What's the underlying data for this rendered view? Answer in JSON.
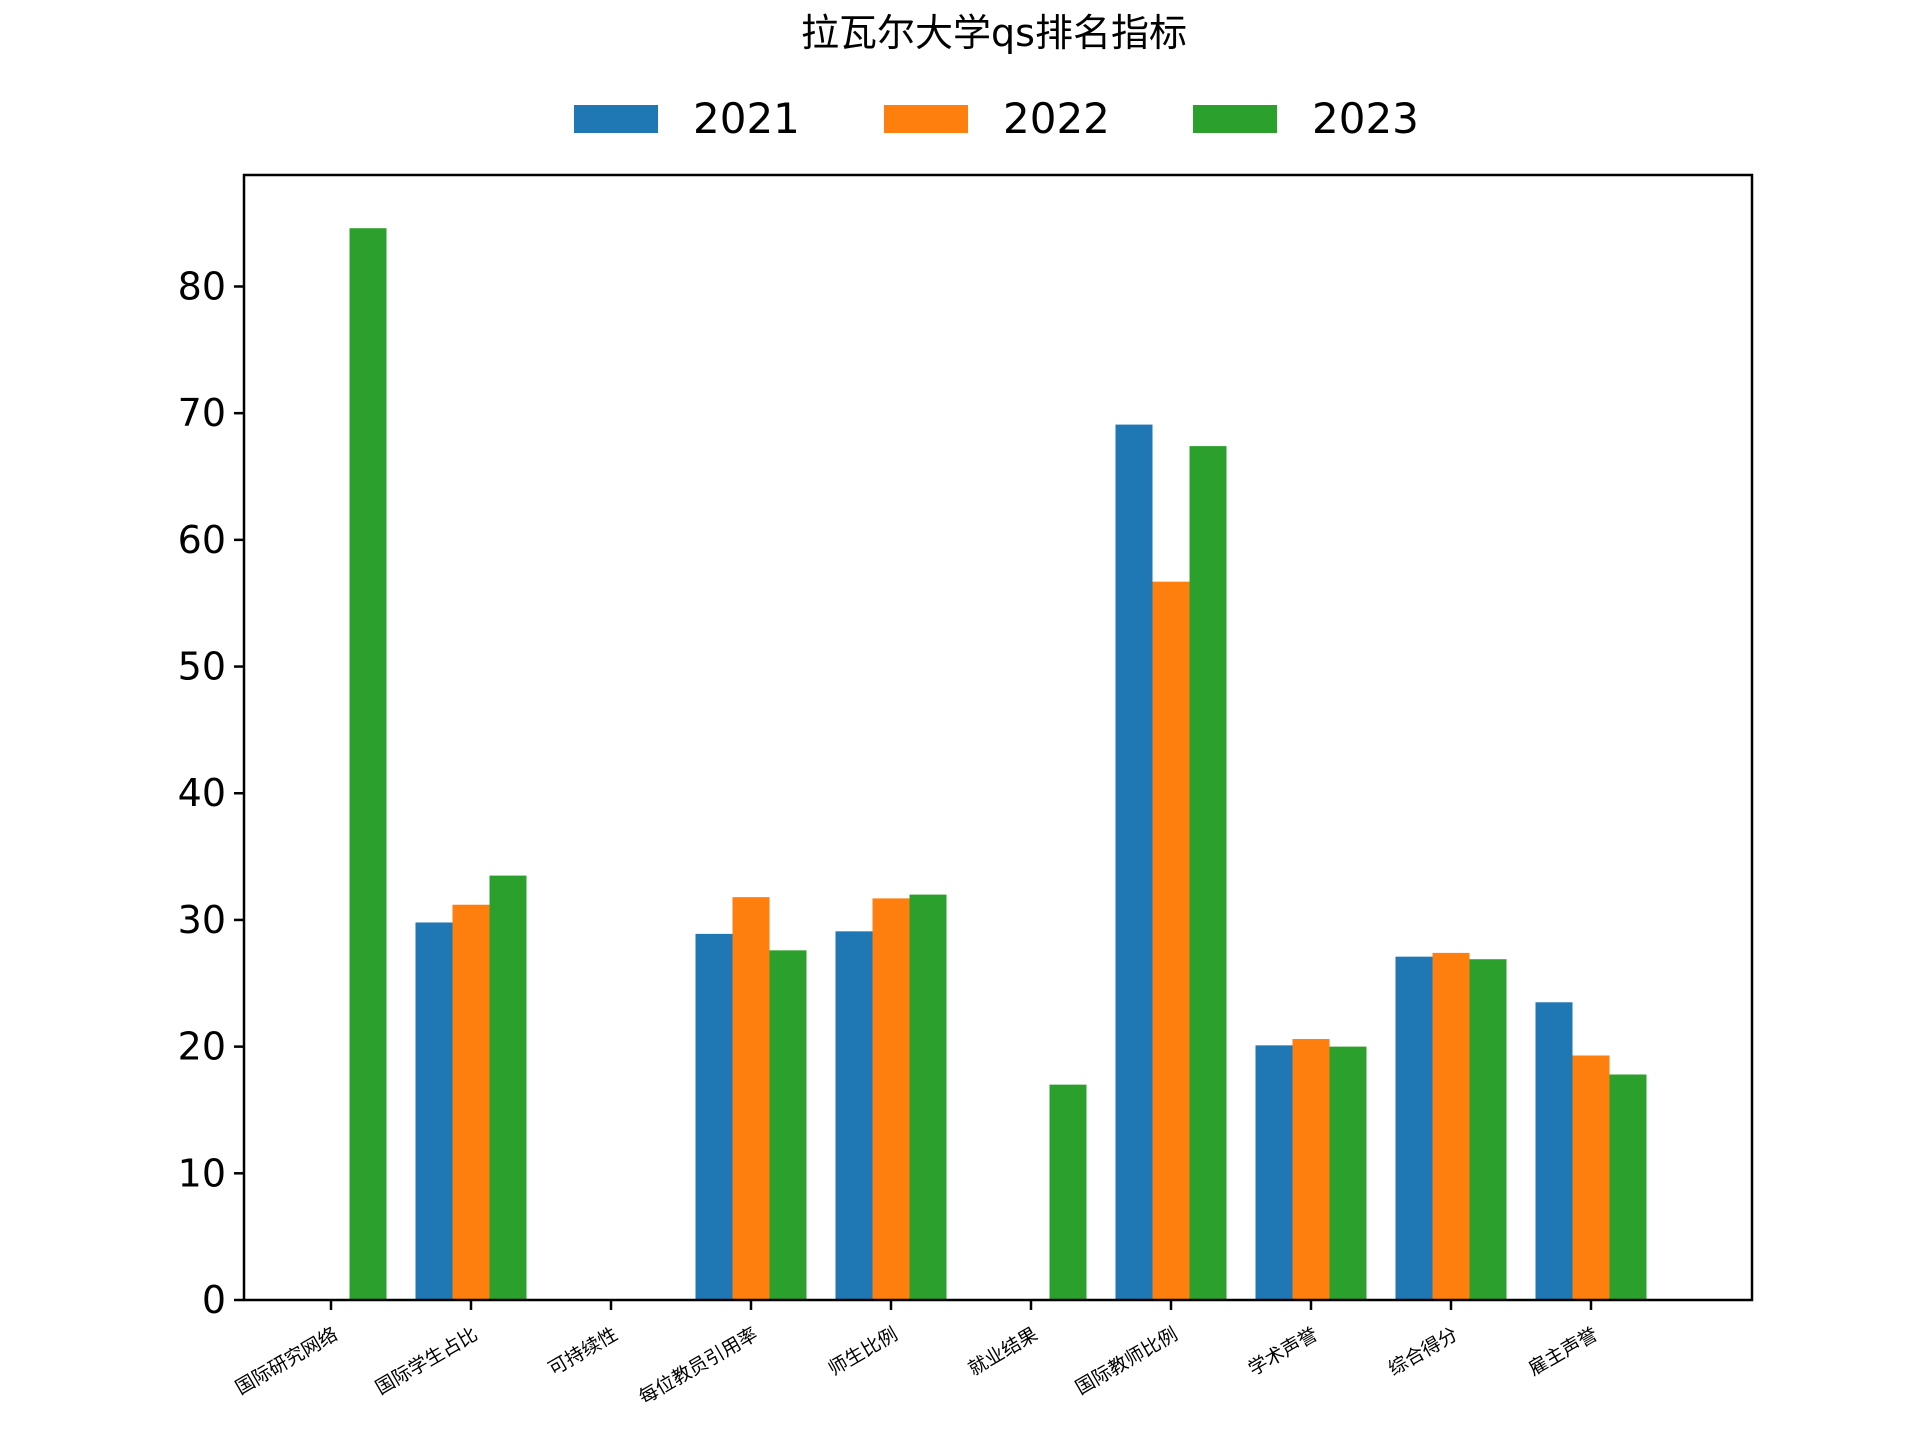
{
  "chart_data": {
    "type": "bar",
    "title": "拉瓦尔大学qs排名指标",
    "xlabel": "",
    "ylabel": "",
    "categories": [
      "国际研究网络",
      "国际学生占比",
      "可持续性",
      "每位教员引用率",
      "师生比例",
      "就业结果",
      "国际教师比例",
      "学术声誉",
      "综合得分",
      "雇主声誉"
    ],
    "series": [
      {
        "name": "2021",
        "color": "#1f77b4",
        "values": [
          null,
          29.8,
          null,
          28.9,
          29.1,
          null,
          69.1,
          20.1,
          27.1,
          23.5
        ]
      },
      {
        "name": "2022",
        "color": "#ff7f0e",
        "values": [
          null,
          31.2,
          null,
          31.8,
          31.7,
          null,
          56.7,
          20.6,
          27.4,
          19.3
        ]
      },
      {
        "name": "2023",
        "color": "#2ca02c",
        "values": [
          84.6,
          33.5,
          null,
          27.6,
          32.0,
          17.0,
          67.4,
          20.0,
          26.9,
          17.8
        ]
      }
    ],
    "ylim": [
      0,
      88.8
    ],
    "yticks": [
      0,
      10,
      20,
      30,
      40,
      50,
      60,
      70,
      80
    ],
    "grid": false,
    "legend_position": "top-center"
  }
}
